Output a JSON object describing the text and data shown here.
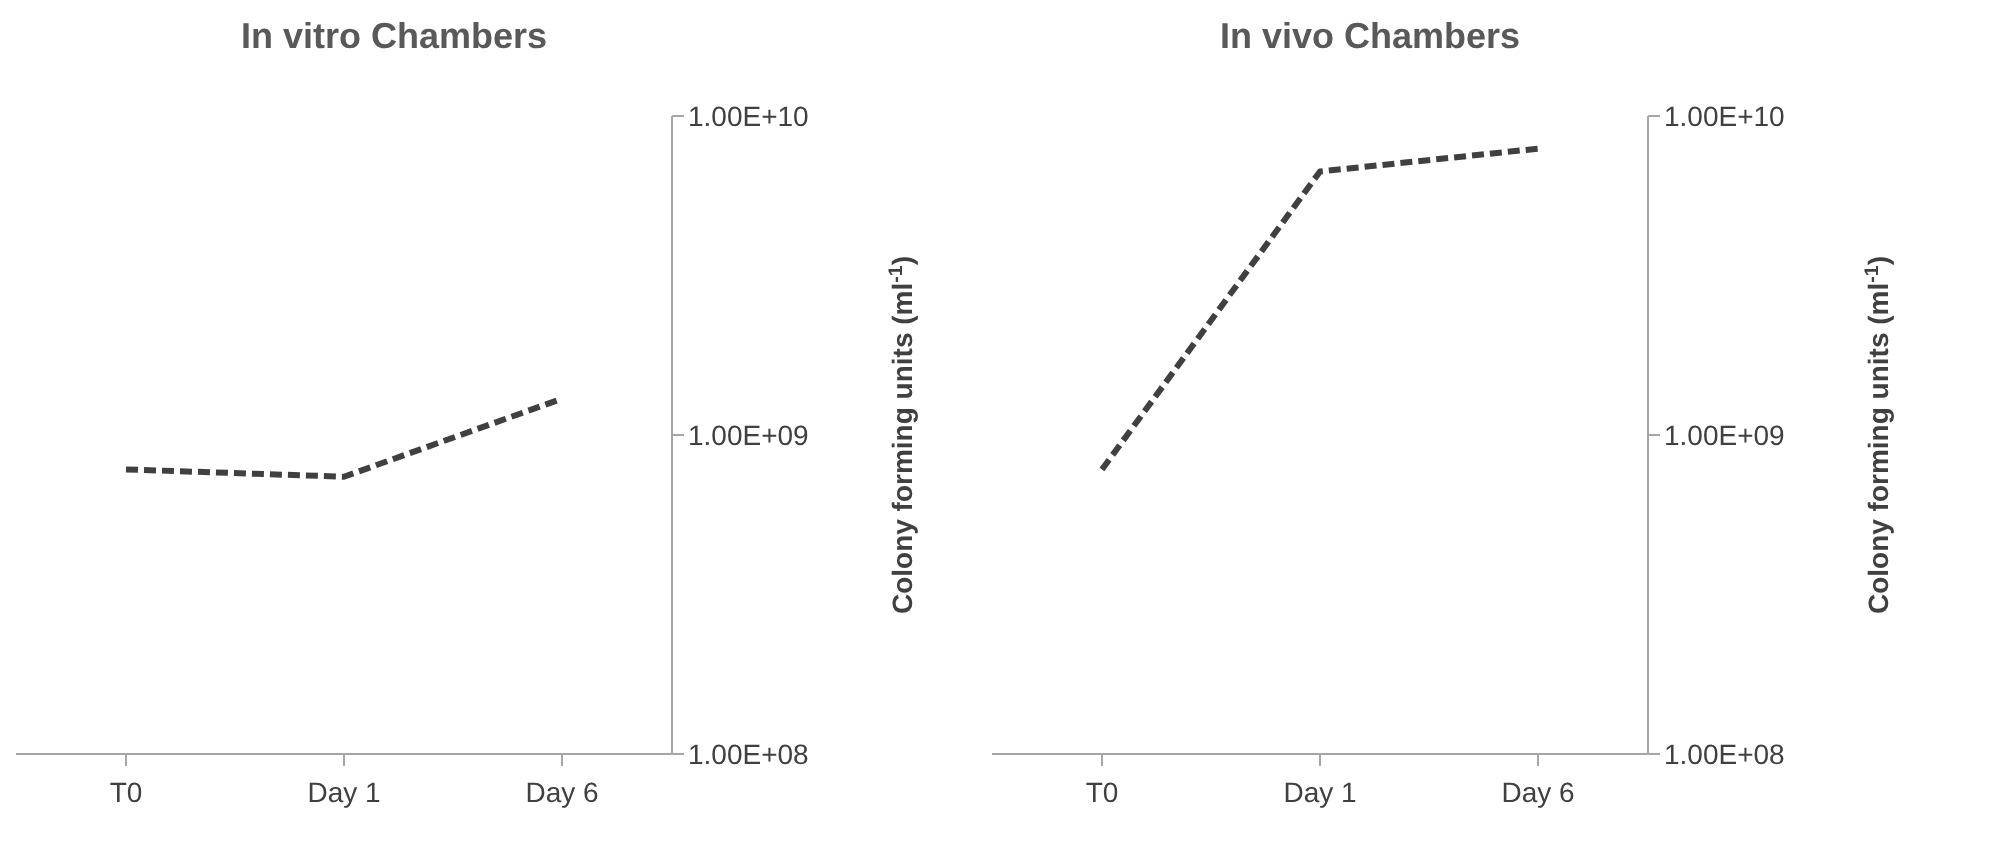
{
  "chart_data": [
    {
      "type": "line",
      "title": "In vitro Chambers",
      "ylabel": "Colony forming units (ml$^{-1}$)",
      "categories": [
        "T0",
        "Day 1",
        "Day 6"
      ],
      "series": [
        {
          "color": "#404040",
          "values": [
            780000000.0,
            740000000.0,
            1300000000.0
          ]
        }
      ],
      "log": "y",
      "ylim": [
        100000000.0,
        10000000000.0
      ],
      "yticks": [
        {
          "value": 100000000.0,
          "label": "1.00E+08"
        },
        {
          "value": 1000000000.0,
          "label": "1.00E+09"
        },
        {
          "value": 10000000000.0,
          "label": "1.00E+10"
        }
      ],
      "line_style": "dashed",
      "marker": "none",
      "grid": false,
      "legend": false
    },
    {
      "type": "line",
      "title": "In vivo Chambers",
      "ylabel": "Colony forming units (ml$^{-1}$)",
      "categories": [
        "T0",
        "Day 1",
        "Day 6"
      ],
      "series": [
        {
          "color": "#404040",
          "values": [
            780000000.0,
            6700000000.0,
            7900000000.0
          ]
        }
      ],
      "log": "y",
      "ylim": [
        100000000.0,
        10000000000.0
      ],
      "yticks": [
        {
          "value": 100000000.0,
          "label": "1.00E+08"
        },
        {
          "value": 1000000000.0,
          "label": "1.00E+09"
        },
        {
          "value": 10000000000.0,
          "label": "1.00E+10"
        }
      ],
      "line_style": "dashed",
      "marker": "none",
      "grid": false,
      "legend": false
    }
  ]
}
